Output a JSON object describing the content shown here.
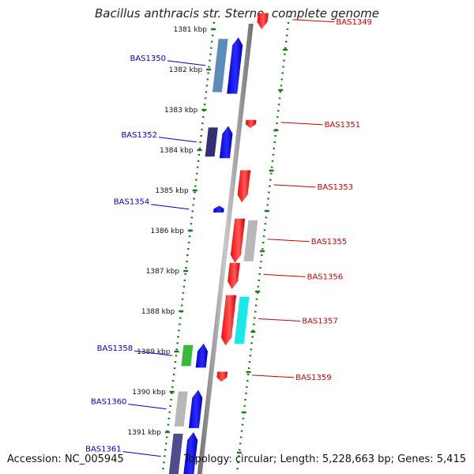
{
  "title": "Bacillus anthracis str. Sterne, complete genome",
  "accession": "Accession: NC_005945",
  "summary": "Topology: circular; Length: 5,228,663 bp; Genes: 5,415",
  "colors": {
    "backbone": "#8c8c8c",
    "ruler": "#1a7a1a",
    "left_label": "#0000cc",
    "right_label": "#cc0000",
    "forward_cds": "#0000ff",
    "reverse_cds": "#ff0000"
  },
  "kbp_ticks": [
    {
      "label": "1381 kbp",
      "kbp": 1381
    },
    {
      "label": "1382 kbp",
      "kbp": 1382
    },
    {
      "label": "1383 kbp",
      "kbp": 1383
    },
    {
      "label": "1384 kbp",
      "kbp": 1384
    },
    {
      "label": "1385 kbp",
      "kbp": 1385
    },
    {
      "label": "1386 kbp",
      "kbp": 1386
    },
    {
      "label": "1387 kbp",
      "kbp": 1387
    },
    {
      "label": "1388 kbp",
      "kbp": 1388
    },
    {
      "label": "1389 kbp",
      "kbp": 1389
    },
    {
      "label": "1390 kbp",
      "kbp": 1390
    },
    {
      "label": "1391 kbp",
      "kbp": 1391
    }
  ],
  "features": [
    {
      "label": "BAS1349",
      "strand": "-",
      "start_kbp": 1380.6,
      "end_kbp": 1381.0
    },
    {
      "label": "BAS1350",
      "strand": "+",
      "start_kbp": 1381.2,
      "end_kbp": 1382.6
    },
    {
      "label": "BAS1351",
      "strand": "-",
      "start_kbp": 1383.25,
      "end_kbp": 1383.45
    },
    {
      "label": "BAS1352",
      "strand": "+",
      "start_kbp": 1383.4,
      "end_kbp": 1384.2
    },
    {
      "label": "BAS1353",
      "strand": "-",
      "start_kbp": 1384.5,
      "end_kbp": 1385.3
    },
    {
      "label": "BAS1354",
      "strand": "+",
      "start_kbp": 1385.38,
      "end_kbp": 1385.55
    },
    {
      "label": "BAS1355",
      "strand": "-",
      "start_kbp": 1385.7,
      "end_kbp": 1386.8
    },
    {
      "label": "BAS1356",
      "strand": "-",
      "start_kbp": 1386.8,
      "end_kbp": 1387.45
    },
    {
      "label": "BAS1357",
      "strand": "-",
      "start_kbp": 1387.6,
      "end_kbp": 1388.85
    },
    {
      "label": "BAS1358",
      "strand": "+",
      "start_kbp": 1388.8,
      "end_kbp": 1389.4
    },
    {
      "label": "BAS1359",
      "strand": "-",
      "start_kbp": 1389.5,
      "end_kbp": 1389.75
    },
    {
      "label": "BAS1360",
      "strand": "+",
      "start_kbp": 1389.95,
      "end_kbp": 1390.9
    },
    {
      "label": "BAS1361",
      "strand": "+",
      "start_kbp": 1391.0,
      "end_kbp": 1392.2
    }
  ],
  "feature_colors": {
    "BAS1349": "#ff0000",
    "BAS1350": "#0000ff",
    "BAS1351": "#ff0000",
    "BAS1352": "#0000ff",
    "BAS1353": "#ff0000",
    "BAS1354": "#0000ff",
    "BAS1355": "#ff0000",
    "BAS1356": "#ff0000",
    "BAS1357": "#ff0000",
    "BAS1358": "#0000ff",
    "BAS1359": "#ff0000",
    "BAS1360": "#0000ff",
    "BAS1361": "#0000ff"
  },
  "annotation_bars": [
    {
      "gene": "BAS1350",
      "color": "#4a7fb5"
    },
    {
      "gene": "BAS1352",
      "color": "#1a1a66"
    },
    {
      "gene": "BAS1355",
      "color": "#b0b0b0"
    },
    {
      "gene": "BAS1357",
      "color": "#00e5e5"
    },
    {
      "gene": "BAS1358",
      "color": "#22b422"
    },
    {
      "gene": "BAS1360",
      "color": "#b0b0b0"
    },
    {
      "gene": "BAS1361",
      "color": "#3a3a80"
    }
  ]
}
